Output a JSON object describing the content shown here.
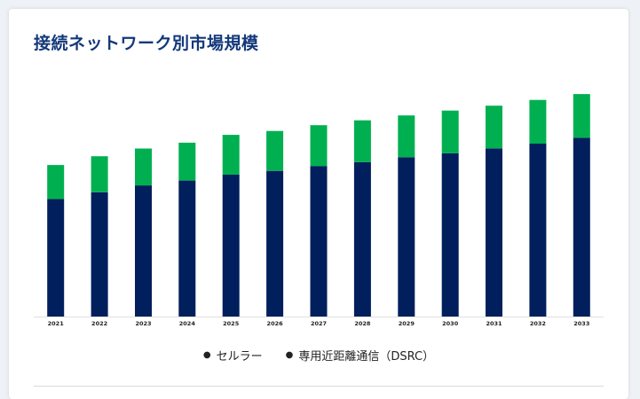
{
  "title": "接続ネットワーク別市場規模",
  "colors": {
    "cellular": "#001f5c",
    "dsrc": "#00b050",
    "title": "#13387a"
  },
  "chart_data": {
    "type": "bar",
    "stacked": true,
    "categories": [
      "2021",
      "2022",
      "2023",
      "2024",
      "2025",
      "2026",
      "2027",
      "2028",
      "2029",
      "2030",
      "2031",
      "2032",
      "2033"
    ],
    "series": [
      {
        "name": "セルラー",
        "color": "#001f5c",
        "values": [
          121,
          128,
          135,
          140,
          146,
          150,
          155,
          159,
          164,
          168,
          173,
          178,
          184
        ]
      },
      {
        "name": "専用近距離通信（DSRC）",
        "color": "#00b050",
        "values": [
          35,
          37,
          38,
          39,
          41,
          41,
          42,
          43,
          43,
          44,
          44,
          45,
          45
        ]
      }
    ],
    "ylim": [
      0,
      230
    ],
    "grid": false,
    "legend_position": "bottom-center",
    "xlabel": "",
    "ylabel": ""
  }
}
